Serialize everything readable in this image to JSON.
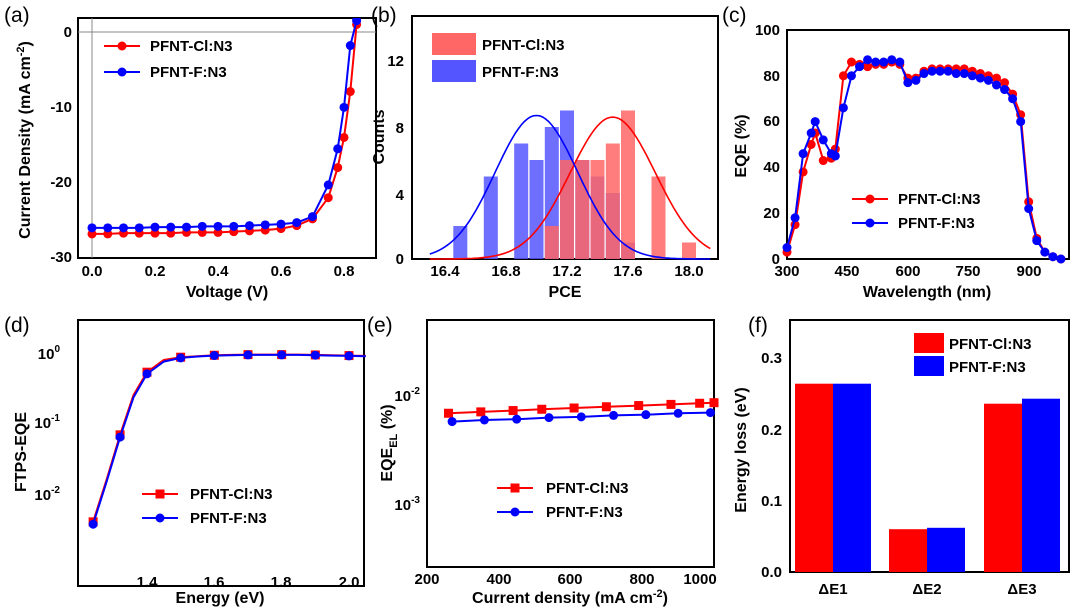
{
  "chart_data": [
    {
      "panel": "(a)",
      "type": "line",
      "xlabel": "Voltage (V)",
      "ylabel": "Current Density (mA cm",
      "ylabel_sup": "-2",
      "ylabel_end": ")",
      "xlim": [
        -0.05,
        0.9
      ],
      "ylim": [
        -30,
        2
      ],
      "xticks": [
        "0.0",
        "0.2",
        "0.4",
        "0.6",
        "0.8"
      ],
      "yticks": [
        "0",
        "-10",
        "-20",
        "-30"
      ],
      "series": [
        {
          "name": "PFNT-Cl:N3",
          "color": "#ff0000",
          "marker": "circle",
          "x": [
            0.0,
            0.05,
            0.1,
            0.15,
            0.2,
            0.25,
            0.3,
            0.35,
            0.4,
            0.45,
            0.5,
            0.55,
            0.6,
            0.65,
            0.7,
            0.75,
            0.78,
            0.8,
            0.82,
            0.84
          ],
          "y": [
            -26.8,
            -26.8,
            -26.7,
            -26.7,
            -26.7,
            -26.7,
            -26.6,
            -26.6,
            -26.6,
            -26.5,
            -26.4,
            -26.3,
            -26.1,
            -25.7,
            -24.8,
            -22.0,
            -18.0,
            -14.0,
            -7.9,
            1.0
          ]
        },
        {
          "name": "PFNT-F:N3",
          "color": "#0000ff",
          "marker": "circle",
          "x": [
            0.0,
            0.05,
            0.1,
            0.15,
            0.2,
            0.25,
            0.3,
            0.35,
            0.4,
            0.45,
            0.5,
            0.55,
            0.6,
            0.65,
            0.7,
            0.75,
            0.78,
            0.8,
            0.82,
            0.84
          ],
          "y": [
            -26.0,
            -26.0,
            -26.0,
            -26.0,
            -25.9,
            -25.9,
            -25.9,
            -25.8,
            -25.8,
            -25.8,
            -25.7,
            -25.6,
            -25.5,
            -25.3,
            -24.5,
            -20.3,
            -15.5,
            -10.0,
            -1.8,
            1.5
          ]
        }
      ]
    },
    {
      "panel": "(b)",
      "type": "bar",
      "xlabel": "PCE",
      "ylabel": "Counts",
      "xlim": [
        16.2,
        18.2
      ],
      "ylim": [
        0,
        14
      ],
      "xticks": [
        "16.4",
        "16.8",
        "17.2",
        "17.6",
        "18.0"
      ],
      "yticks": [
        "0",
        "4",
        "8",
        "12"
      ],
      "series": [
        {
          "name": "PFNT-Cl:N3",
          "color": "#ff6666",
          "fit_mean": 17.5,
          "fit_peak": 8.6,
          "fit_sigma": 0.28,
          "x": [
            17.1,
            17.2,
            17.3,
            17.4,
            17.5,
            17.6,
            17.8,
            18.0
          ],
          "values": [
            2,
            6,
            6,
            6,
            7,
            9,
            5,
            1
          ]
        },
        {
          "name": "PFNT-F:N3",
          "color": "#5555ff",
          "fit_mean": 17.0,
          "fit_peak": 8.7,
          "fit_sigma": 0.27,
          "x": [
            16.5,
            16.7,
            16.9,
            17.0,
            17.1,
            17.2,
            17.3,
            17.4,
            17.5,
            17.6
          ],
          "values": [
            2,
            5,
            7,
            6,
            8,
            9,
            6,
            5,
            4,
            1
          ]
        }
      ]
    },
    {
      "panel": "(c)",
      "type": "line",
      "xlabel": "Wavelength (nm)",
      "ylabel": "EQE (%)",
      "xlim": [
        300,
        1000
      ],
      "ylim": [
        0,
        100
      ],
      "xticks": [
        "300",
        "450",
        "600",
        "750",
        "900"
      ],
      "yticks": [
        "0",
        "20",
        "40",
        "60",
        "80",
        "100"
      ],
      "series": [
        {
          "name": "PFNT-Cl:N3",
          "color": "#ff0000",
          "marker": "circle",
          "x": [
            300,
            320,
            340,
            360,
            370,
            390,
            410,
            420,
            440,
            460,
            480,
            500,
            520,
            540,
            560,
            580,
            600,
            620,
            640,
            660,
            680,
            700,
            720,
            740,
            760,
            780,
            800,
            820,
            840,
            860,
            880,
            900,
            920,
            940,
            960,
            980
          ],
          "y": [
            3,
            15,
            38,
            50,
            55,
            43,
            44,
            48,
            80,
            86,
            85,
            84,
            85,
            85,
            86,
            85,
            79,
            79,
            82,
            83,
            83,
            83,
            83,
            83,
            82,
            81,
            80,
            79,
            77,
            72,
            63,
            25,
            9,
            3,
            1,
            0
          ]
        },
        {
          "name": "PFNT-F:N3",
          "color": "#0000ff",
          "marker": "circle",
          "x": [
            300,
            320,
            340,
            360,
            370,
            390,
            410,
            420,
            440,
            460,
            480,
            500,
            520,
            540,
            560,
            580,
            600,
            620,
            640,
            660,
            680,
            700,
            720,
            740,
            760,
            780,
            800,
            820,
            840,
            860,
            880,
            900,
            920,
            940,
            960,
            980
          ],
          "y": [
            5,
            18,
            46,
            55,
            60,
            52,
            46,
            45,
            66,
            80,
            84,
            87,
            86,
            86,
            87,
            86,
            77,
            78,
            81,
            82,
            82,
            82,
            81,
            81,
            80,
            79,
            78,
            76,
            74,
            70,
            60,
            22,
            8,
            3,
            1,
            0
          ]
        }
      ]
    },
    {
      "panel": "(d)",
      "type": "line",
      "xlabel": "Energy (eV)",
      "ylabel": "FTPS-EQE",
      "yscale": "log",
      "xlim": [
        1.2,
        2.05
      ],
      "ylim_log10": [
        -2.9,
        0.2
      ],
      "xticks": [
        "1.4",
        "1.6",
        "1.8",
        "2.0"
      ],
      "yticks_exp": [
        "-2",
        "-1",
        "0"
      ],
      "tick_base": "10",
      "series": [
        {
          "name": "PFNT-Cl:N3",
          "color": "#ff0000",
          "marker": "square",
          "x": [
            1.24,
            1.28,
            1.32,
            1.36,
            1.4,
            1.45,
            1.5,
            1.55,
            1.6,
            1.65,
            1.7,
            1.75,
            1.8,
            1.85,
            1.9,
            1.95,
            2.0,
            2.05
          ],
          "y": [
            0.004,
            0.016,
            0.07,
            0.26,
            0.55,
            0.82,
            0.9,
            0.93,
            0.96,
            0.97,
            0.98,
            0.98,
            0.98,
            0.98,
            0.97,
            0.96,
            0.95,
            0.94
          ]
        },
        {
          "name": "PFNT-F:N3",
          "color": "#0000ff",
          "marker": "circle",
          "x": [
            1.24,
            1.28,
            1.32,
            1.36,
            1.4,
            1.45,
            1.5,
            1.55,
            1.6,
            1.65,
            1.7,
            1.75,
            1.8,
            1.85,
            1.9,
            1.95,
            2.0,
            2.05
          ],
          "y": [
            0.0037,
            0.015,
            0.065,
            0.24,
            0.52,
            0.78,
            0.88,
            0.92,
            0.95,
            0.96,
            0.97,
            0.97,
            0.97,
            0.97,
            0.96,
            0.95,
            0.94,
            0.93
          ]
        }
      ]
    },
    {
      "panel": "(e)",
      "type": "line",
      "xlabel": "Current density (mA cm",
      "xlabel_sup": "-2",
      "xlabel_end": ")",
      "ylabel": "EQE",
      "ylabel_sub": "EL",
      "ylabel_end": " (%)",
      "yscale": "log",
      "xlim": [
        200,
        1000
      ],
      "ylim_log10": [
        -3.35,
        -1.4
      ],
      "xticks": [
        "200",
        "400",
        "600",
        "800",
        "1000"
      ],
      "yticks_exp": [
        "-3",
        "-2"
      ],
      "tick_base": "10",
      "series": [
        {
          "name": "PFNT-Cl:N3",
          "color": "#ff0000",
          "marker": "square",
          "x": [
            260,
            350,
            440,
            520,
            610,
            700,
            790,
            880,
            960,
            1000
          ],
          "y": [
            0.0068,
            0.007,
            0.0072,
            0.0074,
            0.0076,
            0.0078,
            0.008,
            0.0082,
            0.0084,
            0.0085
          ]
        },
        {
          "name": "PFNT-F:N3",
          "color": "#0000ff",
          "marker": "circle",
          "x": [
            270,
            360,
            450,
            540,
            630,
            720,
            810,
            900,
            990
          ],
          "y": [
            0.0057,
            0.0059,
            0.006,
            0.0062,
            0.0063,
            0.0065,
            0.0066,
            0.0068,
            0.0069
          ]
        }
      ]
    },
    {
      "panel": "(f)",
      "type": "bar",
      "xlabel": "",
      "ylabel": "Energy loss (eV)",
      "ylim": [
        0,
        0.35
      ],
      "yticks": [
        "0.0",
        "0.1",
        "0.2",
        "0.3"
      ],
      "categories": [
        "ΔE1",
        "ΔE2",
        "ΔE3"
      ],
      "series": [
        {
          "name": "PFNT-Cl:N3",
          "color": "#ff0000",
          "values": [
            0.264,
            0.06,
            0.236
          ]
        },
        {
          "name": "PFNT-F:N3",
          "color": "#0000ff",
          "values": [
            0.264,
            0.062,
            0.243
          ]
        }
      ]
    }
  ]
}
